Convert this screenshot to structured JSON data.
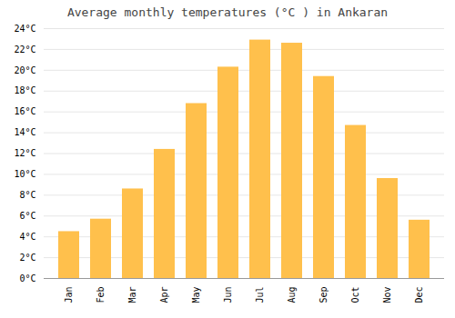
{
  "chart_data": {
    "type": "bar",
    "title": "Average monthly temperatures (°C ) in Ankaran",
    "categories": [
      "Jan",
      "Feb",
      "Mar",
      "Apr",
      "May",
      "Jun",
      "Jul",
      "Aug",
      "Sep",
      "Oct",
      "Nov",
      "Dec"
    ],
    "values": [
      4.5,
      5.7,
      8.6,
      12.4,
      16.8,
      20.3,
      22.9,
      22.6,
      19.4,
      14.7,
      9.6,
      5.6
    ],
    "color": "#FFC04C",
    "ylim": [
      0,
      24
    ],
    "yticks": [
      {
        "value": 0,
        "label": "0°C"
      },
      {
        "value": 2,
        "label": "2°C"
      },
      {
        "value": 4,
        "label": "4°C"
      },
      {
        "value": 6,
        "label": "6°C"
      },
      {
        "value": 8,
        "label": "8°C"
      },
      {
        "value": 10,
        "label": "10°C"
      },
      {
        "value": 12,
        "label": "12°C"
      },
      {
        "value": 14,
        "label": "14°C"
      },
      {
        "value": 16,
        "label": "16°C"
      },
      {
        "value": 18,
        "label": "18°C"
      },
      {
        "value": 20,
        "label": "20°C"
      },
      {
        "value": 22,
        "label": "22°C"
      },
      {
        "value": 24,
        "label": "24°C"
      }
    ],
    "grid": true
  }
}
